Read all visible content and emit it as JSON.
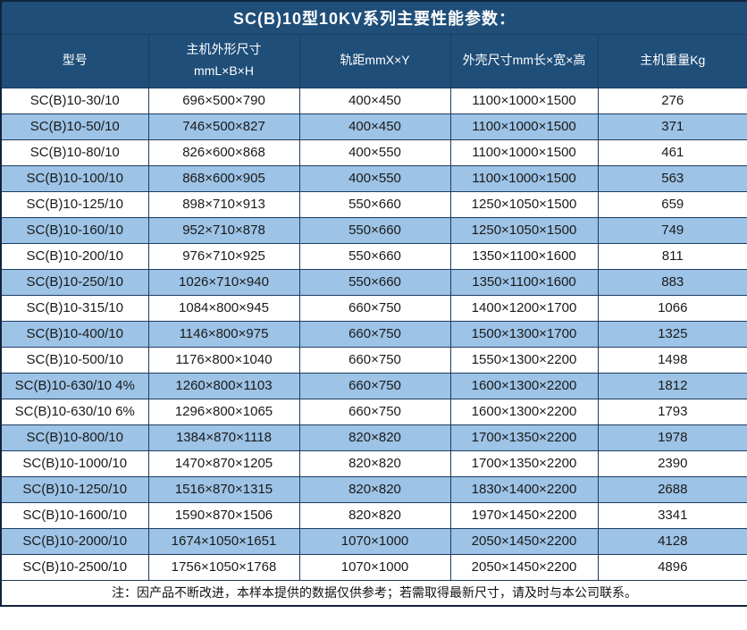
{
  "title": "SC(B)10型10KV系列主要性能参数：",
  "note": "注：因产品不断改进，本样本提供的数据仅供参考；若需取得最新尺寸，请及时与本公司联系。",
  "colors": {
    "header_bg": "#1F4E79",
    "header_text": "#FFFFFF",
    "stripe_bg": "#9DC3E6",
    "row_bg": "#FFFFFF",
    "grid_border": "#1C3C60",
    "body_text": "#1A1A1A"
  },
  "table": {
    "headers": [
      "型号",
      "主机外形尺寸\nmmL×B×H",
      "轨距mmX×Y",
      "外壳尺寸mm长×宽×高",
      "主机重量Kg"
    ],
    "rows": [
      [
        "SC(B)10-30/10",
        "696×500×790",
        "400×450",
        "1100×1000×1500",
        "276"
      ],
      [
        "SC(B)10-50/10",
        "746×500×827",
        "400×450",
        "1100×1000×1500",
        "371"
      ],
      [
        "SC(B)10-80/10",
        "826×600×868",
        "400×550",
        "1100×1000×1500",
        "461"
      ],
      [
        "SC(B)10-100/10",
        "868×600×905",
        "400×550",
        "1100×1000×1500",
        "563"
      ],
      [
        "SC(B)10-125/10",
        "898×710×913",
        "550×660",
        "1250×1050×1500",
        "659"
      ],
      [
        "SC(B)10-160/10",
        "952×710×878",
        "550×660",
        "1250×1050×1500",
        "749"
      ],
      [
        "SC(B)10-200/10",
        "976×710×925",
        "550×660",
        "1350×1100×1600",
        "811"
      ],
      [
        "SC(B)10-250/10",
        "1026×710×940",
        "550×660",
        "1350×1100×1600",
        "883"
      ],
      [
        "SC(B)10-315/10",
        "1084×800×945",
        "660×750",
        "1400×1200×1700",
        "1066"
      ],
      [
        "SC(B)10-400/10",
        "1146×800×975",
        "660×750",
        "1500×1300×1700",
        "1325"
      ],
      [
        "SC(B)10-500/10",
        "1176×800×1040",
        "660×750",
        "1550×1300×2200",
        "1498"
      ],
      [
        "SC(B)10-630/10 4%",
        "1260×800×1103",
        "660×750",
        "1600×1300×2200",
        "1812"
      ],
      [
        "SC(B)10-630/10 6%",
        "1296×800×1065",
        "660×750",
        "1600×1300×2200",
        "1793"
      ],
      [
        "SC(B)10-800/10",
        "1384×870×1118",
        "820×820",
        "1700×1350×2200",
        "1978"
      ],
      [
        "SC(B)10-1000/10",
        "1470×870×1205",
        "820×820",
        "1700×1350×2200",
        "2390"
      ],
      [
        "SC(B)10-1250/10",
        "1516×870×1315",
        "820×820",
        "1830×1400×2200",
        "2688"
      ],
      [
        "SC(B)10-1600/10",
        "1590×870×1506",
        "820×820",
        "1970×1450×2200",
        "3341"
      ],
      [
        "SC(B)10-2000/10",
        "1674×1050×1651",
        "1070×1000",
        "2050×1450×2200",
        "4128"
      ],
      [
        "SC(B)10-2500/10",
        "1756×1050×1768",
        "1070×1000",
        "2050×1450×2200",
        "4896"
      ]
    ]
  }
}
